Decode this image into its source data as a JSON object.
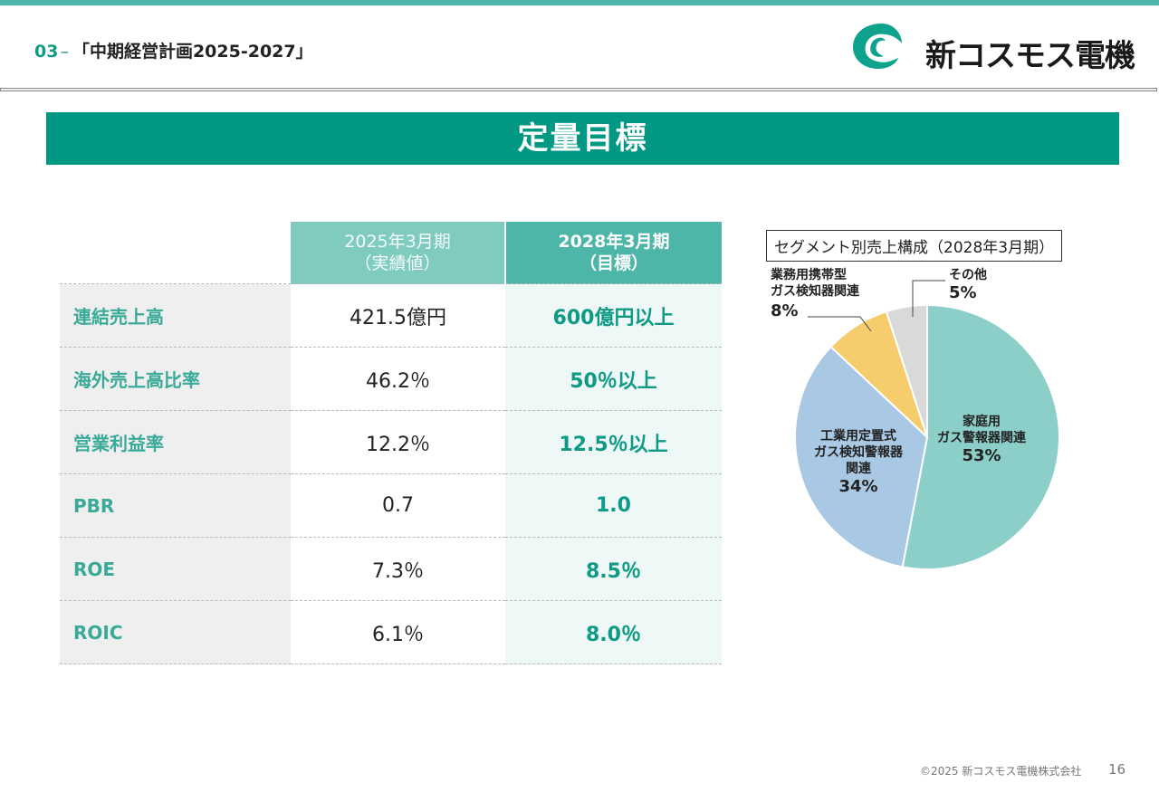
{
  "header": {
    "section_number": "03",
    "section_dash": "–",
    "title": "「中期経営計画2025-2027」"
  },
  "logo": {
    "company": "新コスモス電機"
  },
  "banner": {
    "title": "定量目標"
  },
  "table": {
    "header_actual": [
      "2025年3月期",
      "（実績値）"
    ],
    "header_target": [
      "2028年3月期",
      "（目標）"
    ],
    "rows": [
      {
        "label": "連結売上高",
        "actual": "421.5億円",
        "target": "600億円以上"
      },
      {
        "label": "海外売上高比率",
        "actual": "46.2％",
        "target": "50％以上"
      },
      {
        "label": "営業利益率",
        "actual": "12.2％",
        "target": "12.5％以上"
      },
      {
        "label": "PBR",
        "actual": "0.7",
        "target": "1.0"
      },
      {
        "label": "ROE",
        "actual": "7.3％",
        "target": "8.5％"
      },
      {
        "label": "ROIC",
        "actual": "6.1％",
        "target": "8.0％"
      }
    ]
  },
  "chart_data": {
    "type": "pie",
    "title": "セグメント別売上構成（2028年3月期）",
    "slices": [
      {
        "label": "家庭用ガス警報器関連",
        "label_lines": [
          "家庭用",
          "ガス警報器関連"
        ],
        "value": 53,
        "value_label": "53%",
        "color": "#8ccfc9"
      },
      {
        "label": "工業用定置式ガス検知警報器関連",
        "label_lines": [
          "工業用定置式",
          "ガス検知警報器",
          "関連"
        ],
        "value": 34,
        "value_label": "34%",
        "color": "#a9c8e4"
      },
      {
        "label": "業務用携帯型ガス検知器関連",
        "label_lines": [
          "業務用携帯型",
          "ガス検知器関連"
        ],
        "value": 8,
        "value_label": "8%",
        "color": "#f5cd6c"
      },
      {
        "label": "その他",
        "label_lines": [
          "その他"
        ],
        "value": 5,
        "value_label": "5%",
        "color": "#d9d9d9"
      }
    ]
  },
  "footer": {
    "copyright": "©2025 新コスモス電機株式会社",
    "page_number": "16"
  }
}
